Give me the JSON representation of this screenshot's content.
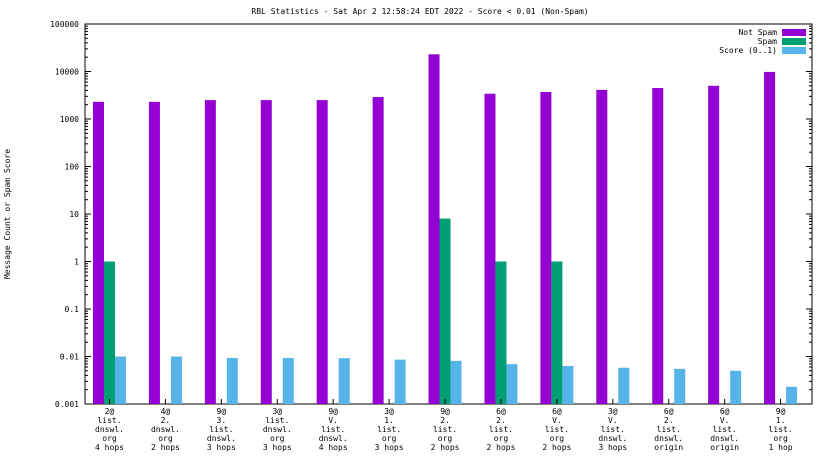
{
  "chart_data": {
    "type": "bar",
    "title": "RBL Statistics - Sat Apr  2 12:58:24 EDT 2022 - Score < 0.01 (Non-Spam)",
    "ylabel": "Message Count or Spam Score",
    "xlabel": "",
    "yscale": "log",
    "ylim": [
      0.001,
      100000
    ],
    "yticks": [
      "0.001",
      "0.01",
      "0.1",
      "1",
      "10",
      "100",
      "1000",
      "10000",
      "100000"
    ],
    "legend_position": "top-right",
    "categories": [
      [
        "2@",
        "list.",
        "dnswl.",
        "org",
        "4 hops"
      ],
      [
        "4@",
        "2.",
        "dnswl.",
        "org",
        "2 hops"
      ],
      [
        "9@",
        "3.",
        "list.",
        "dnswl.",
        "3 hops"
      ],
      [
        "3@",
        "list.",
        "dnswl.",
        "org",
        "3 hops"
      ],
      [
        "9@",
        "V.",
        "list.",
        "dnswl.",
        "4 hops"
      ],
      [
        "3@",
        "1.",
        "list.",
        "org",
        "3 hops"
      ],
      [
        "9@",
        "2.",
        "list.",
        "org",
        "2 hops"
      ],
      [
        "6@",
        "2.",
        "list.",
        "org",
        "2 hops"
      ],
      [
        "6@",
        "V.",
        "list.",
        "org",
        "2 hops"
      ],
      [
        "3@",
        "V.",
        "list.",
        "dnswl.",
        "3 hops"
      ],
      [
        "6@",
        "2.",
        "list.",
        "dnswl.",
        "origin"
      ],
      [
        "6@",
        "V.",
        "list.",
        "dnswl.",
        "origin"
      ],
      [
        "9@",
        "1.",
        "list.",
        "org",
        "1 hop"
      ]
    ],
    "series": [
      {
        "name": "Not Spam",
        "color": "#9400d3",
        "values": [
          2300,
          2300,
          2500,
          2500,
          2500,
          2900,
          23000,
          3400,
          3700,
          4100,
          4500,
          5000,
          9800
        ]
      },
      {
        "name": "Spam",
        "color": "#009e73",
        "values": [
          1,
          null,
          null,
          null,
          null,
          null,
          8,
          1,
          1,
          null,
          null,
          null,
          null
        ]
      },
      {
        "name": "Score (0..1)",
        "color": "#56b4e9",
        "values": [
          0.01,
          0.01,
          0.0093,
          0.0093,
          0.0092,
          0.0086,
          0.0081,
          0.0069,
          0.0063,
          0.0058,
          0.0055,
          0.005,
          0.0023
        ]
      }
    ]
  }
}
